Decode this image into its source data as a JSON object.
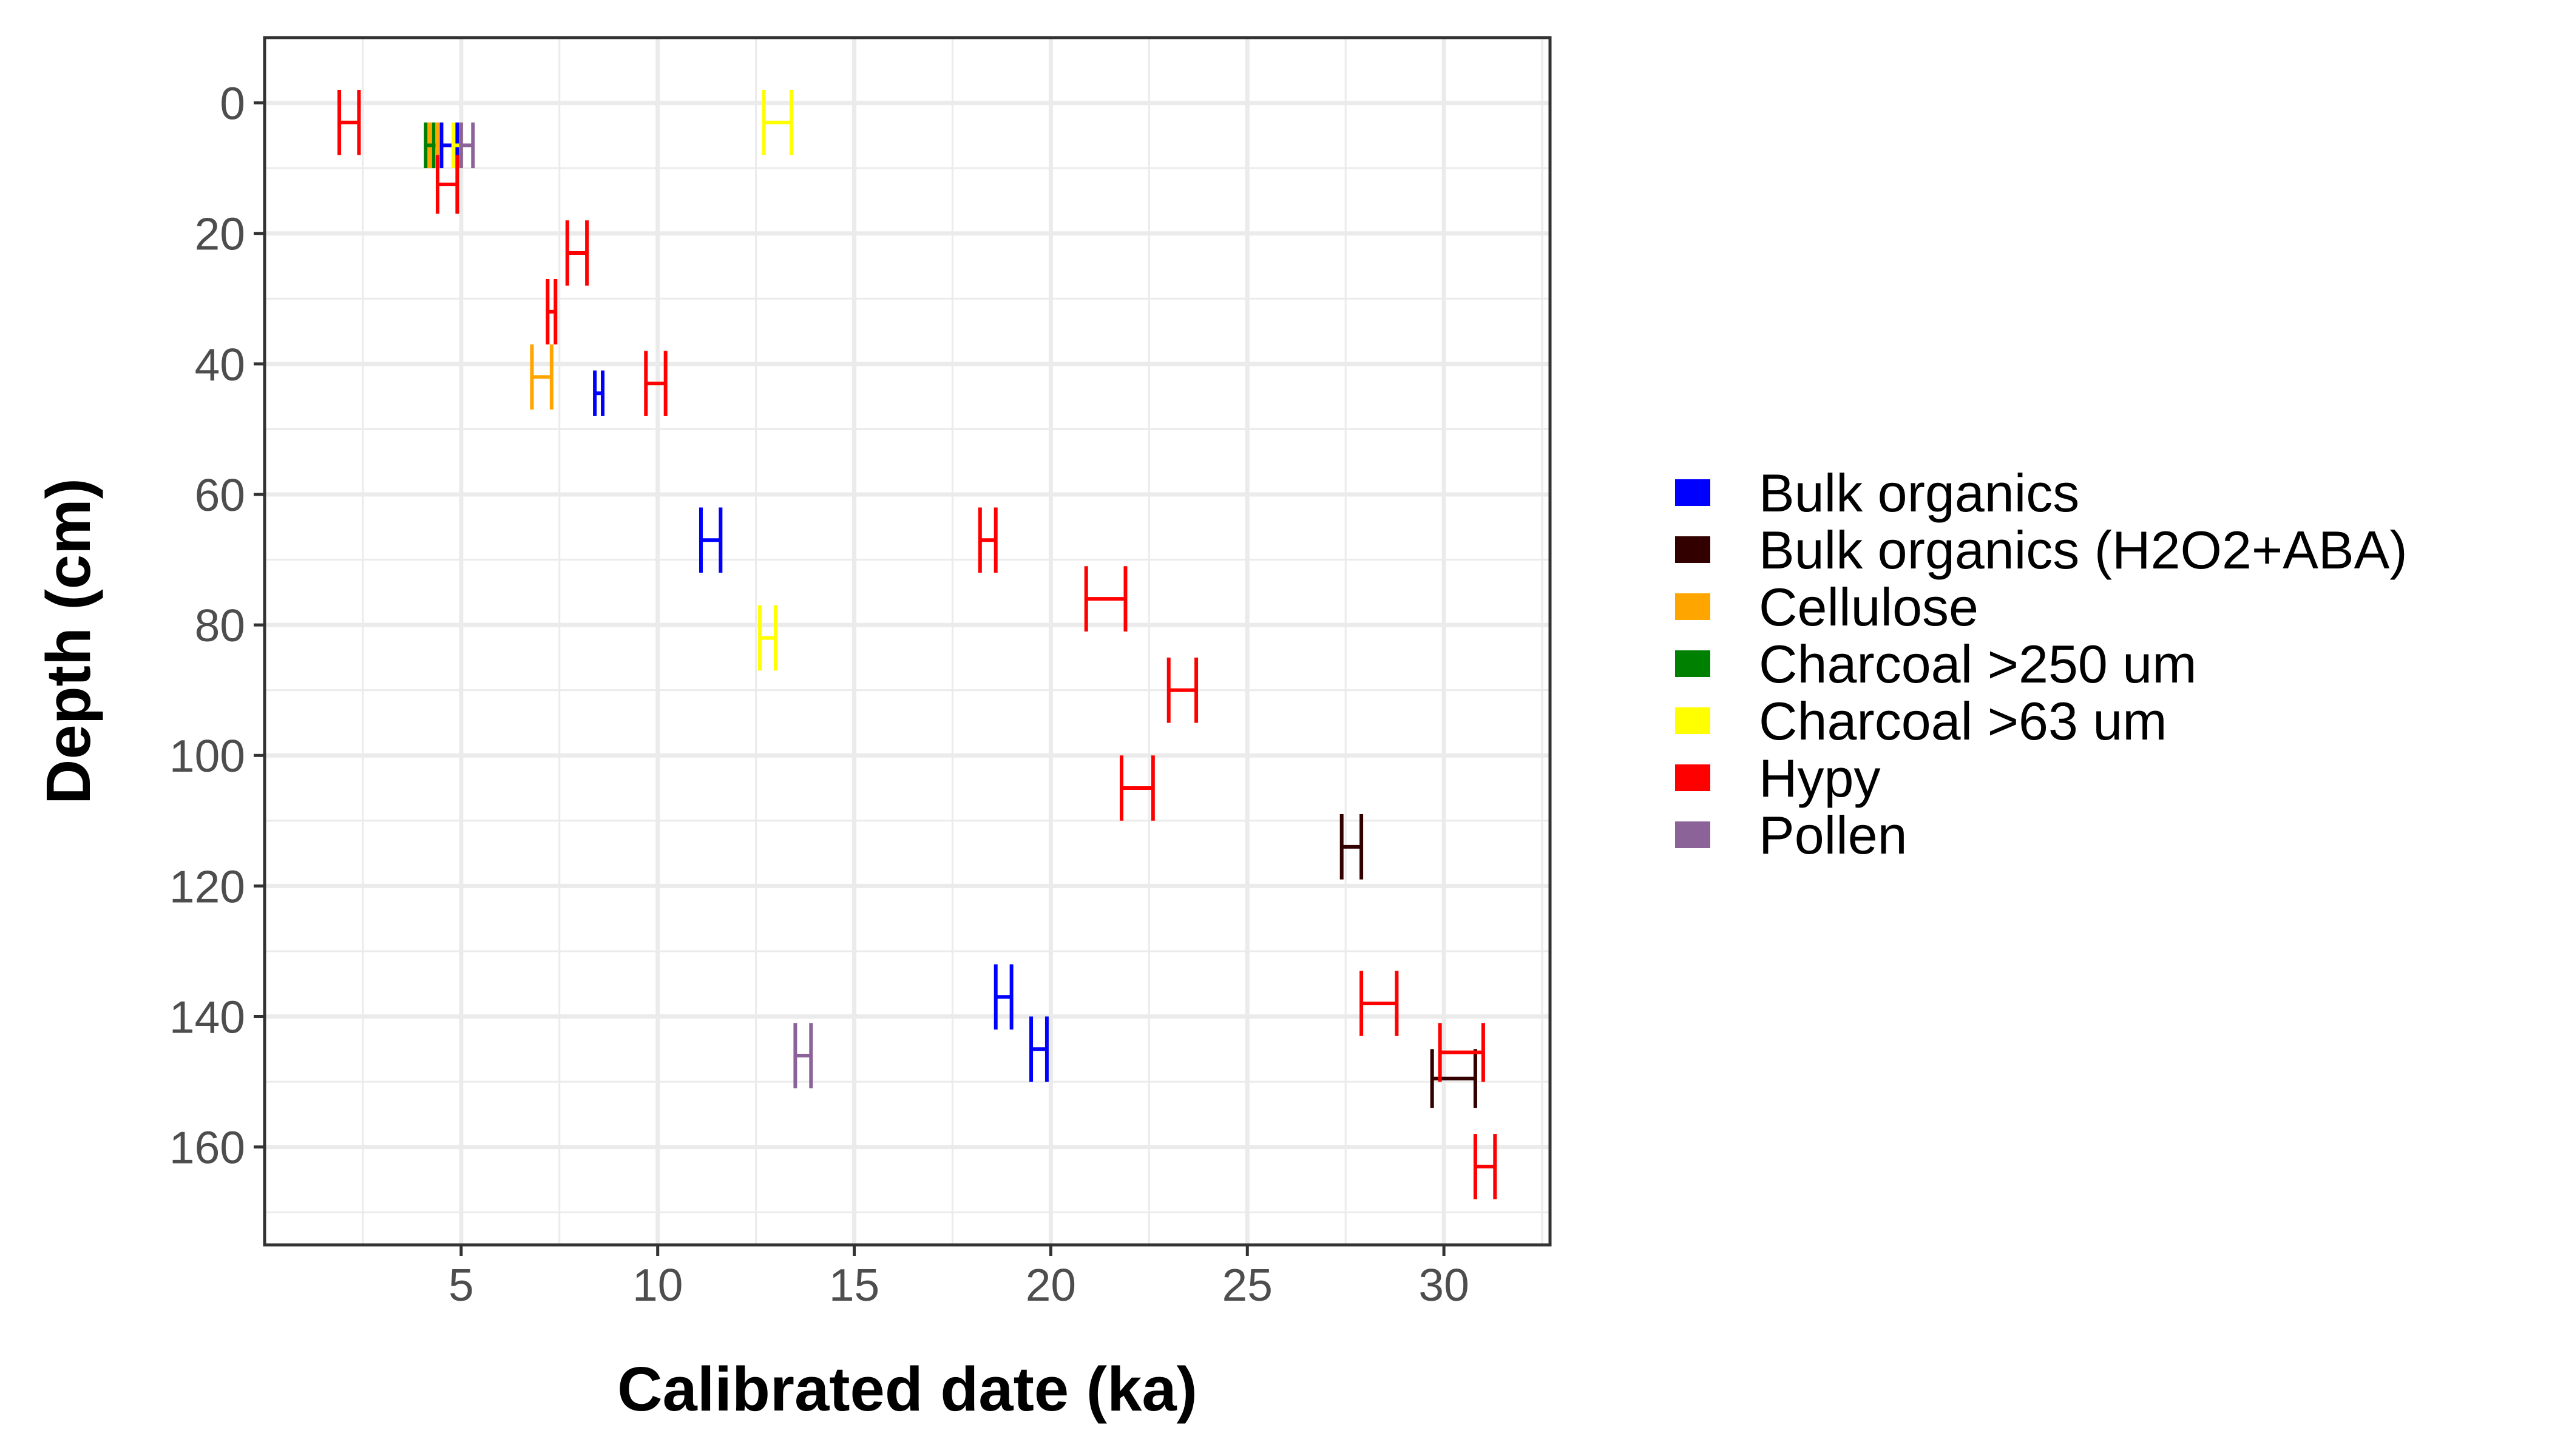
{
  "chart_data": {
    "type": "errorbar",
    "xlabel": "Calibrated date (ka)",
    "ylabel": "Depth (cm)",
    "xlim": [
      0.0,
      32.7
    ],
    "ylim": [
      175,
      -10
    ],
    "y_reversed": true,
    "xticks": [
      5,
      10,
      15,
      20,
      25,
      30
    ],
    "yticks": [
      0,
      20,
      40,
      60,
      80,
      100,
      120,
      140,
      160
    ],
    "grid": true,
    "legend_position": "right",
    "series": [
      {
        "name": "Bulk organics",
        "color": "#0000FF",
        "points": [
          {
            "depth": 3,
            "bottom": 10,
            "min": 4.5,
            "max": 4.9
          },
          {
            "depth": 41,
            "bottom": 48,
            "min": 8.4,
            "max": 8.6
          },
          {
            "depth": 62,
            "bottom": 72,
            "min": 11.1,
            "max": 11.6
          },
          {
            "depth": 132,
            "bottom": 142,
            "min": 18.6,
            "max": 19.0
          },
          {
            "depth": 140,
            "bottom": 150,
            "min": 19.5,
            "max": 19.9
          }
        ]
      },
      {
        "name": "Bulk organics (H2O2+ABA)",
        "color": "#330000",
        "points": [
          {
            "depth": 109,
            "bottom": 119,
            "min": 27.4,
            "max": 27.9
          },
          {
            "depth": 145,
            "bottom": 154,
            "min": 29.7,
            "max": 30.8
          }
        ]
      },
      {
        "name": "Cellulose",
        "color": "#FFA500",
        "points": [
          {
            "depth": 3,
            "bottom": 10,
            "min": 4.2,
            "max": 4.4
          },
          {
            "depth": 37,
            "bottom": 47,
            "min": 6.8,
            "max": 7.3
          }
        ]
      },
      {
        "name": "Charcoal >250 um",
        "color": "#008000",
        "points": [
          {
            "depth": 3,
            "bottom": 10,
            "min": 4.1,
            "max": 4.3
          }
        ]
      },
      {
        "name": "Charcoal >63 um",
        "color": "#FFFF00",
        "points": [
          {
            "depth": -2,
            "bottom": 8,
            "min": 12.7,
            "max": 13.4
          },
          {
            "depth": 77,
            "bottom": 87,
            "min": 12.6,
            "max": 13.0
          },
          {
            "depth": 3,
            "bottom": 10,
            "min": 4.8,
            "max": 5.0
          }
        ]
      },
      {
        "name": "Hypy",
        "color": "#FF0000",
        "points": [
          {
            "depth": -2,
            "bottom": 8,
            "min": 1.9,
            "max": 2.4
          },
          {
            "depth": 8,
            "bottom": 17,
            "min": 4.4,
            "max": 4.9
          },
          {
            "depth": 18,
            "bottom": 28,
            "min": 7.7,
            "max": 8.2
          },
          {
            "depth": 27,
            "bottom": 37,
            "min": 7.2,
            "max": 7.4
          },
          {
            "depth": 38,
            "bottom": 48,
            "min": 9.7,
            "max": 10.2
          },
          {
            "depth": 62,
            "bottom": 72,
            "min": 18.2,
            "max": 18.6
          },
          {
            "depth": 71,
            "bottom": 81,
            "min": 20.9,
            "max": 21.9
          },
          {
            "depth": 85,
            "bottom": 95,
            "min": 23.0,
            "max": 23.7
          },
          {
            "depth": 100,
            "bottom": 110,
            "min": 21.8,
            "max": 22.6
          },
          {
            "depth": 133,
            "bottom": 143,
            "min": 27.9,
            "max": 28.8
          },
          {
            "depth": 141,
            "bottom": 150,
            "min": 29.9,
            "max": 31.0
          },
          {
            "depth": 158,
            "bottom": 168,
            "min": 30.8,
            "max": 31.3
          }
        ]
      },
      {
        "name": "Pollen",
        "color": "#8B6399",
        "points": [
          {
            "depth": 3,
            "bottom": 10,
            "min": 5.0,
            "max": 5.3
          },
          {
            "depth": 141,
            "bottom": 151,
            "min": 13.5,
            "max": 13.9
          }
        ]
      }
    ]
  }
}
